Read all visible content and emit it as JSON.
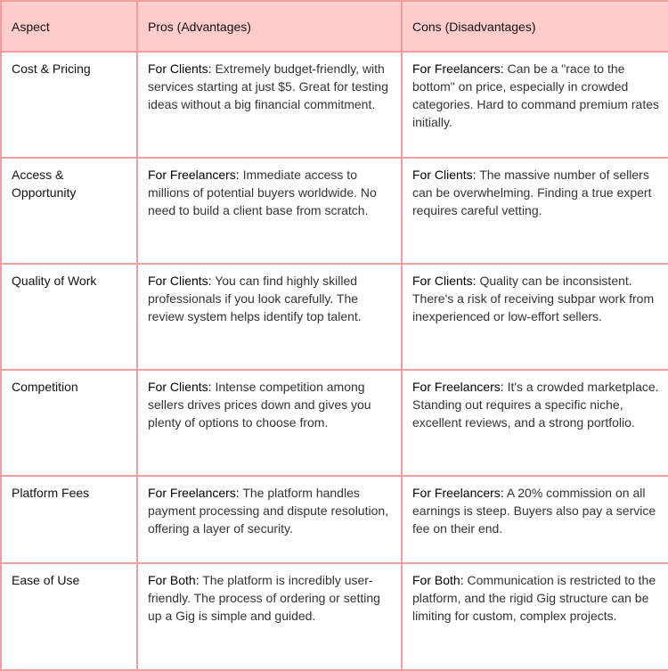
{
  "colors": {
    "header_bg": "#ffcccc",
    "border": "#f59c9c"
  },
  "headers": [
    "Aspect",
    "Pros (Advantages)",
    "Cons (Disadvantages)"
  ],
  "rows": [
    {
      "aspect": "Cost & Pricing",
      "pros": {
        "who": "For Clients:",
        "text": " Extremely budget-friendly, with services starting at just $5. Great for testing ideas without a big financial commitment."
      },
      "cons": {
        "who": "For Freelancers:",
        "text": " Can be a \"race to the bottom\" on price, especially in crowded categories. Hard to command premium rates initially."
      }
    },
    {
      "aspect": "Access & Opportunity",
      "pros": {
        "who": "For Freelancers:",
        "text": " Immediate access to millions of potential buyers worldwide. No need to build a client base from scratch."
      },
      "cons": {
        "who": "For Clients:",
        "text": " The massive number of sellers can be overwhelming. Finding a true expert requires careful vetting."
      }
    },
    {
      "aspect": "Quality of Work",
      "pros": {
        "who": "For Clients:",
        "text": " You can find highly skilled professionals if you look carefully. The review system helps identify top talent."
      },
      "cons": {
        "who": "For Clients:",
        "text": " Quality can be inconsistent. There's a risk of receiving subpar work from inexperienced or low-effort sellers."
      }
    },
    {
      "aspect": "Competition",
      "pros": {
        "who": "For Clients:",
        "text": " Intense competition among sellers drives prices down and gives you plenty of options to choose from."
      },
      "cons": {
        "who": "For Freelancers:",
        "text": " It's a crowded marketplace. Standing out requires a specific niche, excellent reviews, and a strong portfolio."
      }
    },
    {
      "aspect": "Platform Fees",
      "pros": {
        "who": "For Freelancers:",
        "text": " The platform handles payment processing and dispute resolution, offering a layer of security."
      },
      "cons": {
        "who": "For Freelancers:",
        "text": " A 20% commission on all earnings is steep. Buyers also pay a service fee on their end."
      }
    },
    {
      "aspect": "Ease of Use",
      "pros": {
        "who": "For Both:",
        "text": " The platform is incredibly user-friendly. The process of ordering or setting up a Gig is simple and guided."
      },
      "cons": {
        "who": "For Both:",
        "text": " Communication is restricted to the platform, and the rigid Gig structure can be limiting for custom, complex projects."
      }
    }
  ]
}
